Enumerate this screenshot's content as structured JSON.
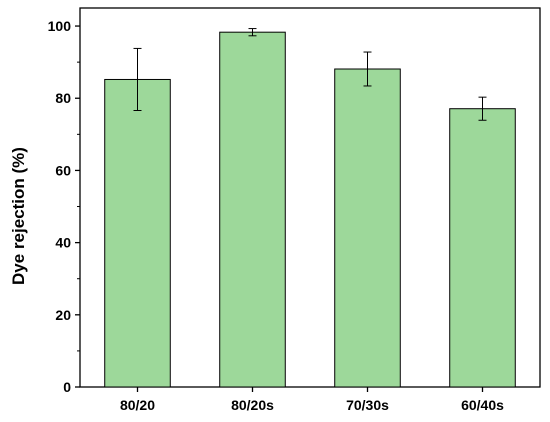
{
  "chart_data": {
    "type": "bar",
    "categories": [
      "80/20",
      "80/20s",
      "70/30s",
      "60/40s"
    ],
    "values": [
      85.2,
      98.3,
      88.1,
      77.1
    ],
    "errors": [
      8.6,
      1.0,
      4.7,
      3.2
    ],
    "title": "",
    "xlabel": "",
    "ylabel": "Dye rejection (%)",
    "ylim": [
      0,
      105
    ],
    "yticks": [
      0,
      20,
      40,
      60,
      80,
      100
    ],
    "grid": false,
    "legend": "none",
    "bar_color": "#9dd89a"
  }
}
